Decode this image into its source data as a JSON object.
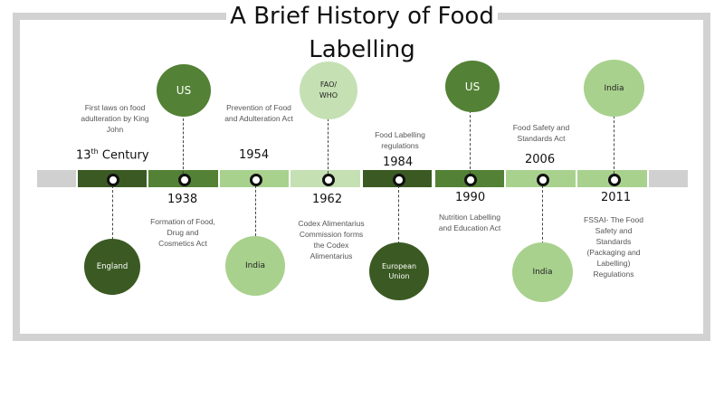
{
  "title": {
    "line1": "A Brief History of Food",
    "line2": "Labelling"
  },
  "colors": {
    "dark": "#3b5a23",
    "medium": "#538135",
    "light": "#a9d18e",
    "pale": "#c5e0b3",
    "bar_end": "#d0d0d0",
    "frame": "#d2d2d2"
  },
  "events": [
    {
      "year": "13",
      "year_sup": "th",
      "year_suffix": " Century",
      "region": "England",
      "description": "First laws on food adulteration by King John"
    },
    {
      "year": "1938",
      "region": "US",
      "description": "Formation of Food, Drug and Cosmetics Act"
    },
    {
      "year": "1954",
      "region": "India",
      "description": "Prevention of Food and Adulteration Act"
    },
    {
      "year": "1962",
      "region": "FAO/ WHO",
      "description": "Codex Alimentarius Commission forms the Codex Alimentarius"
    },
    {
      "year": "1984",
      "region": "European Union",
      "description": "Food Labelling regulations"
    },
    {
      "year": "1990",
      "region": "US",
      "description": "Nutrition Labelling and Education Act"
    },
    {
      "year": "2006",
      "region": "India",
      "description": "Food Safety and Standards Act"
    },
    {
      "year": "2011",
      "region": "India",
      "description": "FSSAI- The Food Safety and Standards (Packaging and Labelling) Regulations"
    }
  ]
}
